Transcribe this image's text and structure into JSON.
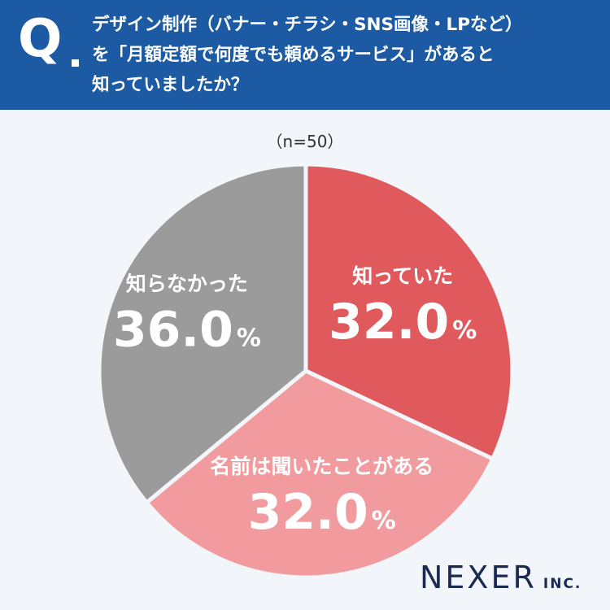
{
  "header": {
    "q_label": "Q",
    "question_lines": [
      "デザイン制作（バナー・チラシ・SNS画像・LPなど）",
      "を「月額定額で何度でも頼めるサービス」があると",
      "知っていましたか？"
    ]
  },
  "sample_size": "（n=50）",
  "chart_data": {
    "type": "pie",
    "slices": [
      {
        "label": "知っていた",
        "value": 32.0,
        "display": "32.0",
        "color": "#e05a5d"
      },
      {
        "label": "名前は聞いたことがある",
        "value": 32.0,
        "display": "32.0",
        "color": "#f29b9e"
      },
      {
        "label": "知らなかった",
        "value": 36.0,
        "display": "36.0",
        "color": "#9b9b9b"
      }
    ],
    "unit": "%"
  },
  "colors": {
    "header_bg": "#1c5aa4",
    "background": "#f2f6fa",
    "divider": "#f2f6fa"
  },
  "logo": {
    "main": "NEXER",
    "sub": "INC."
  }
}
